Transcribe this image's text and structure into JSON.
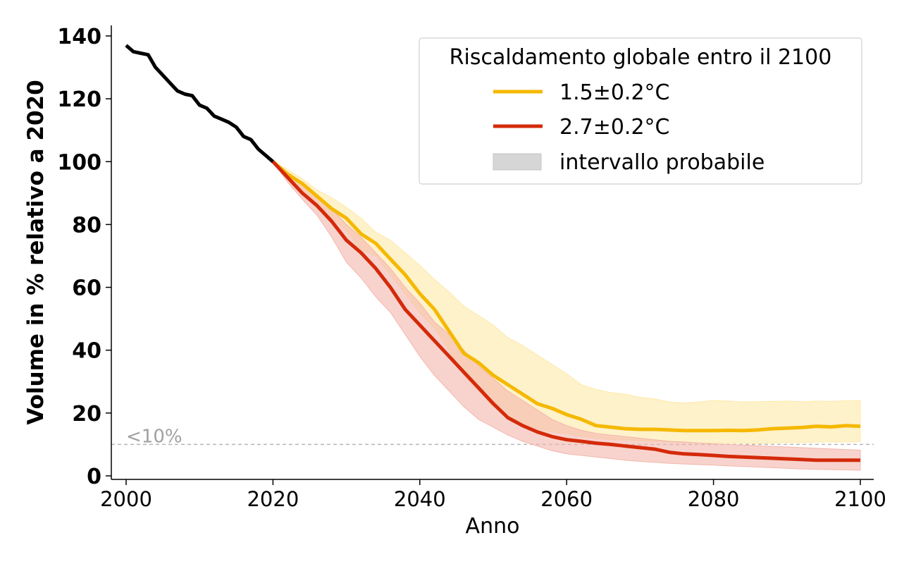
{
  "chart_data": {
    "type": "line",
    "xlabel": "Anno",
    "ylabel": "Volume in % relativo a 2020",
    "xlim": [
      1998,
      2102
    ],
    "ylim": [
      0,
      142
    ],
    "xticks": [
      2000,
      2020,
      2040,
      2060,
      2080,
      2100
    ],
    "yticks": [
      0,
      20,
      40,
      60,
      80,
      100,
      120,
      140
    ],
    "grid": false,
    "legend": {
      "title": "Riscaldamento globale entro il 2100",
      "placement": "top-right",
      "entries": [
        {
          "label": "1.5±0.2°C",
          "kind": "line",
          "color": "#f5b800"
        },
        {
          "label": "2.7±0.2°C",
          "kind": "line",
          "color": "#d42a0a"
        },
        {
          "label": "intervallo probabile",
          "kind": "patch",
          "color": "#d6d6d6"
        }
      ]
    },
    "reference_line": {
      "y": 10,
      "label": "<10%",
      "color": "#b0b0b0"
    },
    "series": [
      {
        "id": "historical",
        "color": "#000000",
        "x": [
          2000,
          2001,
          2002,
          2003,
          2004,
          2005,
          2006,
          2007,
          2008,
          2009,
          2010,
          2011,
          2012,
          2013,
          2014,
          2015,
          2016,
          2017,
          2018,
          2019,
          2020
        ],
        "y": [
          137,
          135,
          134.5,
          134,
          130,
          127.5,
          125,
          122.5,
          121.5,
          121,
          118,
          117,
          114.5,
          113.5,
          112.5,
          111,
          108,
          107,
          104,
          102,
          100
        ]
      },
      {
        "id": "scenario-1.5",
        "name": "1.5±0.2°C",
        "color": "#f5b800",
        "band_color": "#fde9a8",
        "x": [
          2020,
          2022,
          2024,
          2026,
          2028,
          2030,
          2032,
          2034,
          2036,
          2038,
          2040,
          2042,
          2044,
          2046,
          2048,
          2050,
          2052,
          2054,
          2056,
          2058,
          2060,
          2062,
          2064,
          2066,
          2068,
          2070,
          2072,
          2074,
          2076,
          2078,
          2080,
          2082,
          2084,
          2086,
          2088,
          2090,
          2092,
          2094,
          2096,
          2098,
          2100
        ],
        "y": [
          100,
          96,
          93,
          89,
          85,
          82,
          77,
          74,
          69,
          64,
          58,
          53,
          46,
          39,
          36,
          32,
          29,
          26,
          23,
          21.5,
          19.5,
          18,
          16,
          15.5,
          15,
          14.8,
          14.8,
          14.6,
          14.4,
          14.4,
          14.4,
          14.5,
          14.4,
          14.6,
          15,
          15.2,
          15.4,
          15.8,
          15.6,
          16,
          15.8
        ],
        "upper": [
          100,
          97.5,
          94.5,
          91,
          88.5,
          85.5,
          82,
          77.5,
          75,
          71,
          67,
          62.5,
          58.5,
          54,
          51,
          48,
          44,
          41.5,
          38.5,
          35.5,
          32.5,
          29,
          27.5,
          26.5,
          26,
          25,
          24.5,
          23.5,
          23.2,
          23.5,
          24,
          23.8,
          23.5,
          23.6,
          23.7,
          23.8,
          23.6,
          23.8,
          23.7,
          23.9,
          23.9
        ],
        "lower": [
          100,
          94.5,
          91,
          87,
          82,
          78,
          72,
          70,
          64,
          58,
          52,
          47,
          40,
          32,
          27,
          22,
          19,
          17,
          15,
          14,
          13.5,
          12.5,
          12,
          11.5,
          11.5,
          11.2,
          11,
          10.8,
          10.6,
          10.5,
          10.4,
          10.5,
          10.4,
          10.3,
          10.5,
          10.6,
          10.6,
          10.7,
          10.8,
          10.8,
          10.9
        ]
      },
      {
        "id": "scenario-2.7",
        "name": "2.7±0.2°C",
        "color": "#d42a0a",
        "band_color": "#f4b6ac",
        "x": [
          2020,
          2022,
          2024,
          2026,
          2028,
          2030,
          2032,
          2034,
          2036,
          2038,
          2040,
          2042,
          2044,
          2046,
          2048,
          2050,
          2052,
          2054,
          2056,
          2058,
          2060,
          2062,
          2064,
          2066,
          2068,
          2070,
          2072,
          2074,
          2076,
          2078,
          2080,
          2082,
          2084,
          2086,
          2088,
          2090,
          2092,
          2094,
          2096,
          2098,
          2100
        ],
        "y": [
          100,
          95,
          90,
          86,
          81,
          75,
          71,
          66,
          60,
          53,
          48,
          43,
          38,
          33,
          28,
          23,
          18.5,
          16,
          14,
          12.5,
          11.5,
          11,
          10.4,
          10,
          9.5,
          9,
          8.5,
          7.5,
          7,
          6.8,
          6.5,
          6.2,
          6,
          5.8,
          5.6,
          5.4,
          5.2,
          5,
          5,
          5,
          5
        ],
        "upper": [
          100,
          96.5,
          93,
          89,
          85,
          80,
          76,
          71,
          66,
          60,
          55,
          49,
          45,
          40,
          35,
          31,
          27,
          24,
          21,
          18,
          16,
          14.5,
          13.5,
          13,
          12.5,
          12,
          11.5,
          11,
          10.8,
          10.5,
          10.2,
          10,
          9.8,
          9.6,
          9.4,
          9.2,
          9,
          8.8,
          8.6,
          8.4,
          8.2
        ],
        "lower": [
          100,
          93.5,
          88,
          83,
          76,
          68,
          63,
          57,
          52,
          45,
          38,
          32,
          27,
          22,
          18,
          15.5,
          13,
          11,
          9.5,
          8,
          7,
          6.5,
          6,
          5.5,
          5,
          4.6,
          4.3,
          4,
          3.8,
          3.6,
          3.4,
          3.2,
          3,
          2.8,
          2.6,
          2.4,
          2.2,
          2.1,
          2,
          1.9,
          1.8
        ]
      }
    ]
  }
}
